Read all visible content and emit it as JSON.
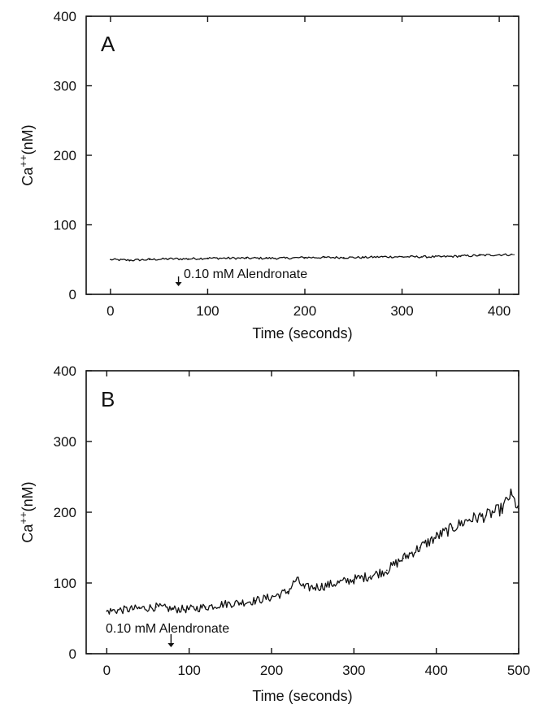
{
  "chart_data": [
    {
      "type": "line",
      "panel_label": "A",
      "xlabel": "Time (seconds)",
      "ylabel": "Ca++(nM)",
      "xlim": [
        -25,
        420
      ],
      "ylim": [
        0,
        400
      ],
      "xticks": [
        0,
        100,
        200,
        300,
        400
      ],
      "yticks": [
        0,
        100,
        200,
        300,
        400
      ],
      "annotation": {
        "text": "0.10 mM Alendronate",
        "x": 70
      },
      "series": [
        {
          "x": [
            0,
            20,
            40,
            60,
            80,
            100,
            120,
            140,
            160,
            180,
            200,
            220,
            240,
            260,
            280,
            300,
            320,
            340,
            360,
            380,
            400,
            415
          ],
          "y": [
            50,
            49,
            50,
            51,
            51,
            52,
            52,
            52,
            52,
            52,
            53,
            53,
            53,
            53,
            54,
            54,
            54,
            54,
            55,
            56,
            57,
            57
          ]
        }
      ]
    },
    {
      "type": "line",
      "panel_label": "B",
      "xlabel": "Time (seconds)",
      "ylabel": "Ca++(nM)",
      "xlim": [
        -25,
        500
      ],
      "ylim": [
        0,
        400
      ],
      "xticks": [
        0,
        100,
        200,
        300,
        400,
        500
      ],
      "yticks": [
        0,
        100,
        200,
        300,
        400
      ],
      "annotation": {
        "text": "0.10 mM Alendronate",
        "x": 78
      },
      "series": [
        {
          "x": [
            0,
            20,
            40,
            60,
            80,
            100,
            120,
            140,
            160,
            180,
            200,
            220,
            230,
            240,
            260,
            280,
            300,
            320,
            340,
            360,
            380,
            400,
            420,
            440,
            460,
            480,
            490,
            500
          ],
          "y": [
            60,
            62,
            64,
            66,
            63,
            63,
            66,
            70,
            72,
            75,
            80,
            88,
            105,
            93,
            95,
            100,
            105,
            110,
            118,
            135,
            150,
            165,
            178,
            190,
            195,
            205,
            225,
            205
          ]
        }
      ]
    }
  ]
}
